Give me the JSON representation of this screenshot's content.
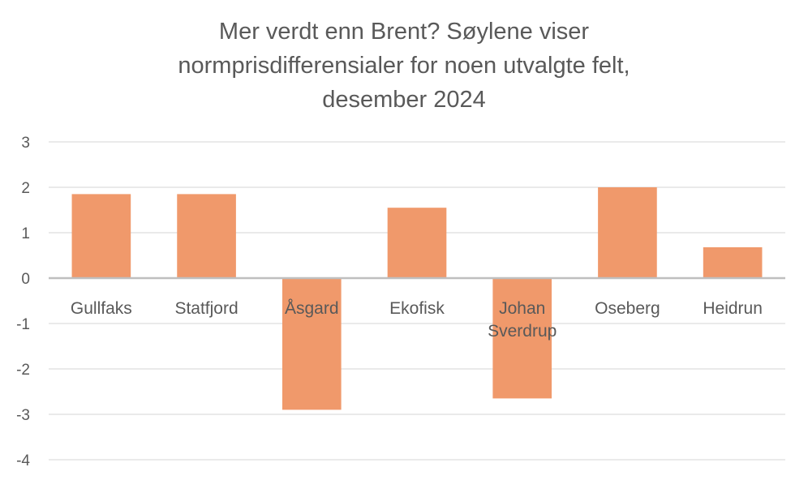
{
  "chart_data": {
    "type": "bar",
    "title_lines": [
      "Mer verdt enn Brent?  Søylene viser",
      "normprisdifferensialer for noen utvalgte felt,",
      "desember 2024"
    ],
    "categories": [
      [
        "Gullfaks"
      ],
      [
        "Statfjord"
      ],
      [
        "Åsgard"
      ],
      [
        "Ekofisk"
      ],
      [
        "Johan",
        "Sverdrup"
      ],
      [
        "Oseberg"
      ],
      [
        "Heidrun"
      ]
    ],
    "values": [
      1.85,
      1.85,
      -2.9,
      1.55,
      -2.65,
      2.0,
      0.68
    ],
    "ylim": [
      -4,
      3
    ],
    "yticks": [
      3,
      2,
      1,
      0,
      -1,
      -2,
      -3,
      -4
    ],
    "grid": true,
    "colors": {
      "bar": "#F0996B",
      "grid": "#E3E3E3",
      "axis": "#BFBFBF",
      "text": "#595959"
    }
  }
}
